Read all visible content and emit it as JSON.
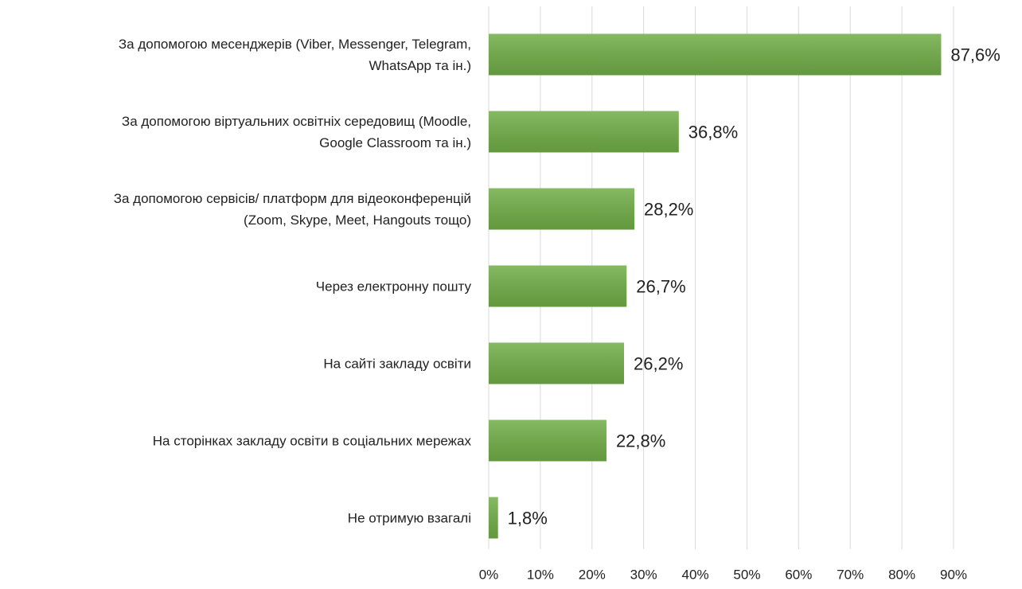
{
  "chart_data": {
    "type": "bar",
    "orientation": "horizontal",
    "categories": [
      "За допомогою месенджерів (Viber, Messenger, Telegram,\nWhatsApp та ін.)",
      "За допомогою віртуальних освітніх середовищ (Moodle,\nGoogle Classroom та ін.)",
      "За допомогою сервісів/ платформ для відеоконференцій\n(Zoom, Skype, Meet, Hangouts тощо)",
      "Через електронну пошту",
      "На сайті закладу освіти",
      "На сторінках закладу освіти в соціальних мережах",
      "Не отримую взагалі"
    ],
    "values": [
      87.6,
      36.8,
      28.2,
      26.7,
      26.2,
      22.8,
      1.8
    ],
    "value_labels": [
      "87,6%",
      "36,8%",
      "28,2%",
      "26,7%",
      "26,2%",
      "22,8%",
      "1,8%"
    ],
    "color": "#70ad47",
    "xlim": [
      0,
      90
    ],
    "xticks": [
      {
        "value": 0,
        "label": "0%"
      },
      {
        "value": 10,
        "label": "10%"
      },
      {
        "value": 20,
        "label": "20%"
      },
      {
        "value": 30,
        "label": "30%"
      },
      {
        "value": 40,
        "label": "40%"
      },
      {
        "value": 50,
        "label": "50%"
      },
      {
        "value": 60,
        "label": "60%"
      },
      {
        "value": 70,
        "label": "70%"
      },
      {
        "value": 80,
        "label": "80%"
      },
      {
        "value": 90,
        "label": "90%"
      }
    ],
    "grid": true
  }
}
